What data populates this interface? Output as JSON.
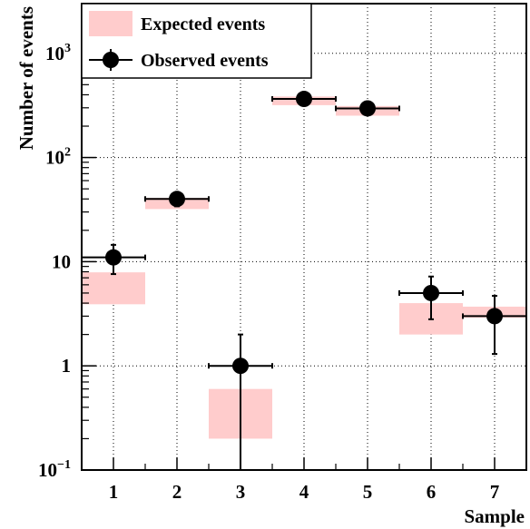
{
  "chart_data": {
    "type": "scatter",
    "xlabel": "Sample",
    "ylabel": "Number of events",
    "x_categories": [
      "1",
      "2",
      "3",
      "4",
      "5",
      "6",
      "7"
    ],
    "xlim": [
      0.5,
      7.5
    ],
    "ylim": [
      0.1,
      3000
    ],
    "y_scale": "log",
    "y_ticks": [
      {
        "value": 0.1,
        "base": "10",
        "exp": "−1"
      },
      {
        "value": 1,
        "base": "1",
        "exp": ""
      },
      {
        "value": 10,
        "base": "10",
        "exp": ""
      },
      {
        "value": 100,
        "base": "10",
        "exp": "2"
      },
      {
        "value": 1000,
        "base": "10",
        "exp": "3"
      }
    ],
    "grid": true,
    "legend": {
      "placement": "top-left",
      "expected_label": "Expected events",
      "observed_label": "Observed events"
    },
    "series": [
      {
        "name": "Expected events",
        "kind": "band",
        "color": "#ffcccc",
        "bands": [
          {
            "x": 1,
            "low": 3.9,
            "high": 7.9
          },
          {
            "x": 2,
            "low": 32,
            "high": 41
          },
          {
            "x": 3,
            "low": 0.2,
            "high": 0.6
          },
          {
            "x": 4,
            "low": 318,
            "high": 385
          },
          {
            "x": 5,
            "low": 252,
            "high": 312
          },
          {
            "x": 6,
            "low": 2.0,
            "high": 4.0
          },
          {
            "x": 7,
            "low": 2.9,
            "high": 3.7
          }
        ]
      },
      {
        "name": "Observed events",
        "kind": "points",
        "color": "#000000",
        "points": [
          {
            "x": 1,
            "y": 11,
            "err_low": 7.6,
            "err_high": 14.5
          },
          {
            "x": 2,
            "y": 40,
            "err_low": 34,
            "err_high": 46
          },
          {
            "x": 3,
            "y": 1,
            "err_low": 0.1,
            "err_high": 2.0
          },
          {
            "x": 4,
            "y": 365,
            "err_low": 346,
            "err_high": 384
          },
          {
            "x": 5,
            "y": 296,
            "err_low": 279,
            "err_high": 313
          },
          {
            "x": 6,
            "y": 5,
            "err_low": 2.8,
            "err_high": 7.2
          },
          {
            "x": 7,
            "y": 3,
            "err_low": 1.3,
            "err_high": 4.7
          }
        ]
      }
    ]
  }
}
